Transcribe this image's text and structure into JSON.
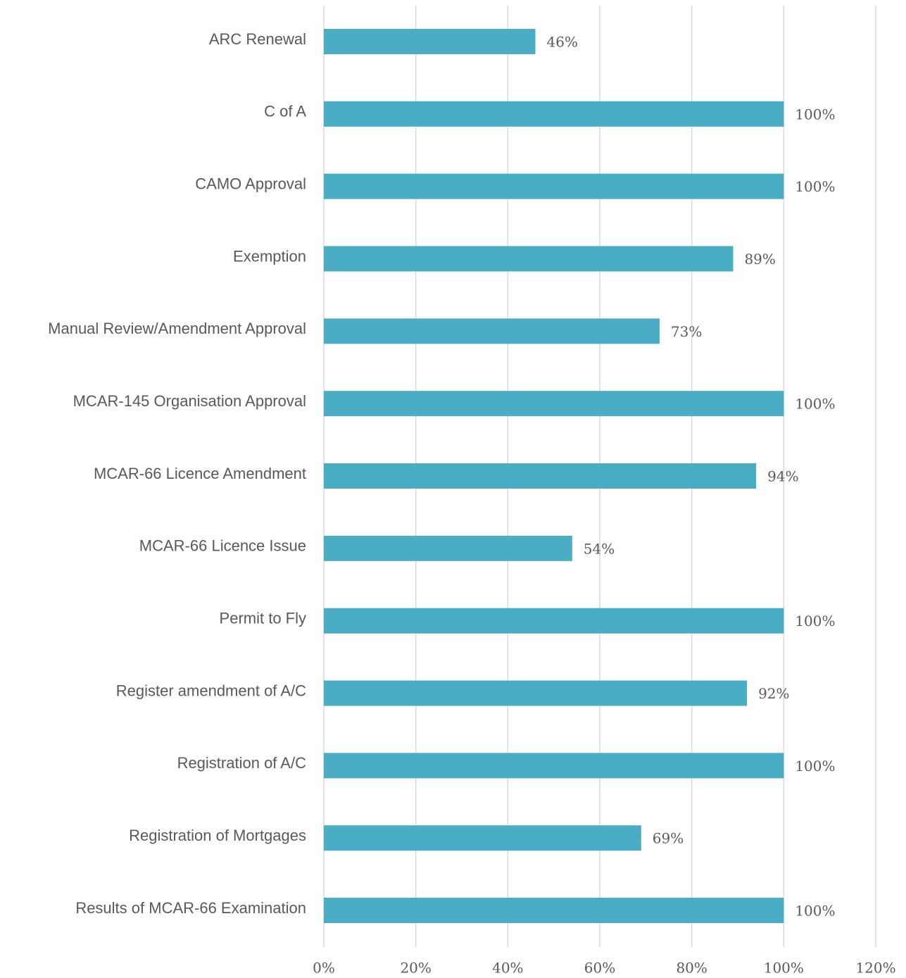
{
  "chart_data": {
    "type": "bar",
    "orientation": "horizontal",
    "categories": [
      "ARC Renewal",
      "C of A",
      "CAMO Approval",
      "Exemption",
      "Manual Review/Amendment Approval",
      "MCAR-145 Organisation Approval",
      "MCAR-66 Licence Amendment",
      "MCAR-66 Licence Issue",
      "Permit to Fly",
      "Register amendment of A/C",
      "Registration of A/C",
      "Registration of Mortgages",
      "Results of MCAR-66 Examination"
    ],
    "values": [
      46,
      100,
      100,
      89,
      73,
      100,
      94,
      54,
      100,
      92,
      100,
      69,
      100
    ],
    "value_labels": [
      "46%",
      "100%",
      "100%",
      "89%",
      "73%",
      "100%",
      "94%",
      "54%",
      "100%",
      "92%",
      "100%",
      "69%",
      "100%"
    ],
    "color": "#4bacc6",
    "xlim": [
      0,
      120
    ],
    "xticks": [
      {
        "value": 0,
        "label": "0%"
      },
      {
        "value": 20,
        "label": "20%"
      },
      {
        "value": 40,
        "label": "40%"
      },
      {
        "value": 60,
        "label": "60%"
      },
      {
        "value": 80,
        "label": "80%"
      },
      {
        "value": 100,
        "label": "100%"
      },
      {
        "value": 120,
        "label": "120%"
      }
    ],
    "grid": true
  }
}
